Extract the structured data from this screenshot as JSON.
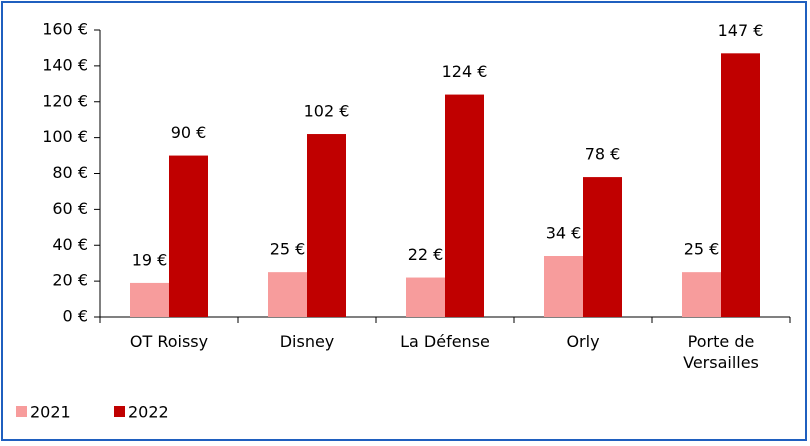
{
  "chart_data": {
    "type": "bar",
    "categories": [
      "OT Roissy",
      "Disney",
      "La Défense",
      "Orly",
      "Porte de Versailles"
    ],
    "series": [
      {
        "name": "2021",
        "color": "#f79c9c",
        "values": [
          19,
          25,
          22,
          34,
          25
        ],
        "value_labels": [
          "19 €",
          "25 €",
          "22 €",
          "34 €",
          "25 €"
        ]
      },
      {
        "name": "2022",
        "color": "#c00000",
        "values": [
          90,
          102,
          124,
          78,
          147
        ],
        "value_labels": [
          "90 €",
          "102 €",
          "124 €",
          "78 €",
          "147 €"
        ]
      }
    ],
    "ylim": [
      0,
      160
    ],
    "yticks": [
      {
        "value": 0,
        "label": "0 €"
      },
      {
        "value": 20,
        "label": "20 €"
      },
      {
        "value": 40,
        "label": "40 €"
      },
      {
        "value": 60,
        "label": "60 €"
      },
      {
        "value": 80,
        "label": "80 €"
      },
      {
        "value": 100,
        "label": "100 €"
      },
      {
        "value": 120,
        "label": "120 €"
      },
      {
        "value": 140,
        "label": "140 €"
      },
      {
        "value": 160,
        "label": "160 €"
      }
    ],
    "legend": "bottom-left"
  }
}
